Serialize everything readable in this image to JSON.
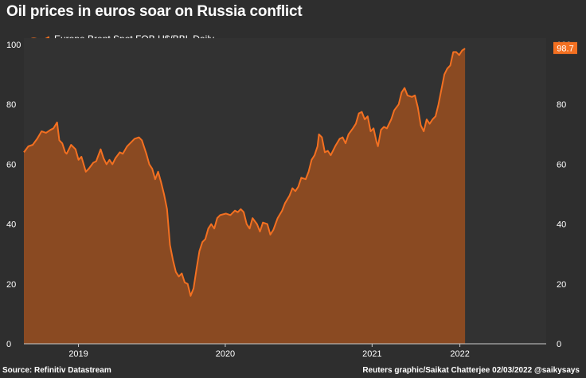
{
  "title": "Oil prices in euros soar on Russia conflict",
  "source": "Source: Refinitiv Datastream",
  "credit": "Reuters graphic/Saikat Chatterjee 02/03/2022 @saikysays",
  "colors": {
    "background": "#2e2e2e",
    "plot_background": "#323232",
    "line": "#f37021",
    "fill": "#8a4a22",
    "grid": "#444444",
    "axis": "#cccccc",
    "last_label_bg": "#f37021"
  },
  "chart_data": {
    "type": "area",
    "legend": {
      "label": "Europe Brent Spot FOB U$/BBL Daily",
      "position": "top-left"
    },
    "x_ticks": [
      "2019",
      "2020",
      "2021",
      "2022"
    ],
    "y_ticks": [
      0,
      20,
      40,
      60,
      80,
      100
    ],
    "ylim": [
      0,
      100
    ],
    "xlim": [
      2018.63,
      2022.17
    ],
    "grid": false,
    "last_value_label": "98.7",
    "series": [
      {
        "name": "Europe Brent Spot FOB U$/BBL Daily",
        "points": [
          [
            2018.63,
            64
          ],
          [
            2018.66,
            66
          ],
          [
            2018.69,
            66.5
          ],
          [
            2018.72,
            68.5
          ],
          [
            2018.75,
            71
          ],
          [
            2018.78,
            70.5
          ],
          [
            2018.81,
            71.5
          ],
          [
            2018.83,
            72
          ],
          [
            2018.855,
            74
          ],
          [
            2018.87,
            68
          ],
          [
            2018.89,
            67
          ],
          [
            2018.91,
            64
          ],
          [
            2018.92,
            63.5
          ],
          [
            2018.95,
            66.5
          ],
          [
            2018.98,
            65
          ],
          [
            2019.0,
            61.5
          ],
          [
            2019.02,
            62.5
          ],
          [
            2019.05,
            57.5
          ],
          [
            2019.07,
            58.5
          ],
          [
            2019.1,
            60.5
          ],
          [
            2019.12,
            61
          ],
          [
            2019.15,
            65
          ],
          [
            2019.17,
            62
          ],
          [
            2019.19,
            60
          ],
          [
            2019.21,
            61.5
          ],
          [
            2019.23,
            60
          ],
          [
            2019.25,
            62
          ],
          [
            2019.28,
            64
          ],
          [
            2019.3,
            63.5
          ],
          [
            2019.33,
            66
          ],
          [
            2019.36,
            67.5
          ],
          [
            2019.38,
            68.5
          ],
          [
            2019.41,
            69
          ],
          [
            2019.43,
            68
          ],
          [
            2019.46,
            63.5
          ],
          [
            2019.48,
            60
          ],
          [
            2019.5,
            58.5
          ],
          [
            2019.52,
            55
          ],
          [
            2019.54,
            57.5
          ],
          [
            2019.56,
            54
          ],
          [
            2019.58,
            50
          ],
          [
            2019.6,
            45
          ],
          [
            2019.62,
            33
          ],
          [
            2019.64,
            28
          ],
          [
            2019.66,
            24
          ],
          [
            2019.68,
            22.5
          ],
          [
            2019.7,
            23.5
          ],
          [
            2019.72,
            20.5
          ],
          [
            2019.74,
            20
          ],
          [
            2019.76,
            16
          ],
          [
            2019.78,
            18.5
          ],
          [
            2019.8,
            25
          ],
          [
            2019.82,
            31
          ],
          [
            2019.84,
            34
          ],
          [
            2019.86,
            35
          ],
          [
            2019.88,
            38.5
          ],
          [
            2019.9,
            40
          ],
          [
            2019.92,
            38.5
          ],
          [
            2019.94,
            42
          ],
          [
            2019.96,
            43
          ],
          [
            2020.0,
            43.5
          ],
          [
            2020.03,
            43
          ],
          [
            2020.06,
            44.5
          ],
          [
            2020.08,
            44
          ],
          [
            2020.1,
            45
          ],
          [
            2020.12,
            44
          ],
          [
            2020.14,
            40
          ],
          [
            2020.16,
            38.5
          ],
          [
            2020.18,
            42
          ],
          [
            2020.21,
            40
          ],
          [
            2020.23,
            37.5
          ],
          [
            2020.25,
            40.5
          ],
          [
            2020.28,
            40
          ],
          [
            2020.3,
            36.5
          ],
          [
            2020.32,
            38
          ],
          [
            2020.35,
            42
          ],
          [
            2020.38,
            44.5
          ],
          [
            2020.4,
            47
          ],
          [
            2020.43,
            49.5
          ],
          [
            2020.45,
            52
          ],
          [
            2020.47,
            51
          ],
          [
            2020.49,
            52.5
          ],
          [
            2020.51,
            55.5
          ],
          [
            2020.54,
            55
          ],
          [
            2020.56,
            57.5
          ],
          [
            2020.58,
            61.5
          ],
          [
            2020.6,
            63
          ],
          [
            2020.62,
            66
          ],
          [
            2020.63,
            70
          ],
          [
            2020.65,
            69
          ],
          [
            2020.67,
            64
          ],
          [
            2020.69,
            64.5
          ],
          [
            2020.71,
            63
          ],
          [
            2020.74,
            66
          ],
          [
            2020.77,
            68.5
          ],
          [
            2020.79,
            69
          ],
          [
            2020.81,
            67
          ],
          [
            2020.83,
            70
          ],
          [
            2020.86,
            72
          ],
          [
            2020.88,
            73.5
          ],
          [
            2020.9,
            77
          ],
          [
            2020.92,
            77.5
          ],
          [
            2020.94,
            75
          ],
          [
            2020.96,
            76
          ],
          [
            2020.98,
            71
          ],
          [
            2021.0,
            72
          ],
          [
            2021.02,
            67.5
          ],
          [
            2021.03,
            66
          ],
          [
            2021.05,
            71.5
          ],
          [
            2021.07,
            72.5
          ],
          [
            2021.09,
            72
          ],
          [
            2021.12,
            75
          ],
          [
            2021.14,
            78
          ],
          [
            2021.17,
            80
          ],
          [
            2021.19,
            84
          ],
          [
            2021.21,
            85.5
          ],
          [
            2021.23,
            83
          ],
          [
            2021.26,
            82.5
          ],
          [
            2021.28,
            83
          ],
          [
            2021.3,
            79
          ],
          [
            2021.32,
            73
          ],
          [
            2021.34,
            71
          ],
          [
            2021.36,
            75
          ],
          [
            2021.38,
            73.5
          ],
          [
            2021.4,
            75
          ],
          [
            2021.42,
            76
          ],
          [
            2021.44,
            80
          ],
          [
            2021.46,
            85
          ],
          [
            2021.48,
            90
          ],
          [
            2021.5,
            92
          ],
          [
            2021.52,
            93
          ],
          [
            2021.54,
            97.5
          ],
          [
            2021.56,
            97.5
          ],
          [
            2021.58,
            96.5
          ],
          [
            2021.6,
            98
          ],
          [
            2021.62,
            98.7
          ]
        ]
      }
    ]
  }
}
